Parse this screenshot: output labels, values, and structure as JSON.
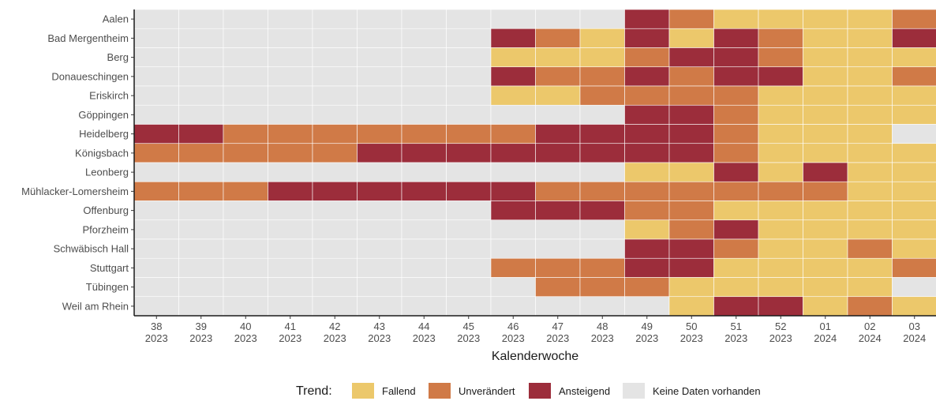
{
  "chart_data": {
    "type": "heatmap",
    "title": "",
    "xlabel": "Kalenderwoche",
    "ylabel": "",
    "weeks": [
      "38",
      "39",
      "40",
      "41",
      "42",
      "43",
      "44",
      "45",
      "46",
      "47",
      "48",
      "49",
      "50",
      "51",
      "52",
      "01",
      "02",
      "03"
    ],
    "years": [
      "2023",
      "2023",
      "2023",
      "2023",
      "2023",
      "2023",
      "2023",
      "2023",
      "2023",
      "2023",
      "2023",
      "2023",
      "2023",
      "2023",
      "2023",
      "2024",
      "2024",
      "2024"
    ],
    "rows": [
      "Aalen",
      "Bad Mergentheim",
      "Berg",
      "Donaueschingen",
      "Eriskirch",
      "Göppingen",
      "Heidelberg",
      "Königsbach",
      "Leonberg",
      "Mühlacker-Lomersheim",
      "Offenburg",
      "Pforzheim",
      "Schwäbisch Hall",
      "Stuttgart",
      "Tübingen",
      "Weil am Rhein"
    ],
    "codes": {
      "F": "Fallend",
      "U": "Unverändert",
      "A": "Ansteigend",
      "N": "Keine Daten vorhanden"
    },
    "values": [
      [
        "N",
        "N",
        "N",
        "N",
        "N",
        "N",
        "N",
        "N",
        "N",
        "N",
        "N",
        "A",
        "U",
        "F",
        "F",
        "F",
        "F",
        "U"
      ],
      [
        "N",
        "N",
        "N",
        "N",
        "N",
        "N",
        "N",
        "N",
        "A",
        "U",
        "F",
        "A",
        "F",
        "A",
        "U",
        "F",
        "F",
        "A"
      ],
      [
        "N",
        "N",
        "N",
        "N",
        "N",
        "N",
        "N",
        "N",
        "F",
        "F",
        "F",
        "U",
        "A",
        "A",
        "U",
        "F",
        "F",
        "F"
      ],
      [
        "N",
        "N",
        "N",
        "N",
        "N",
        "N",
        "N",
        "N",
        "A",
        "U",
        "U",
        "A",
        "U",
        "A",
        "A",
        "F",
        "F",
        "U"
      ],
      [
        "N",
        "N",
        "N",
        "N",
        "N",
        "N",
        "N",
        "N",
        "F",
        "F",
        "U",
        "U",
        "U",
        "U",
        "F",
        "F",
        "F",
        "F"
      ],
      [
        "N",
        "N",
        "N",
        "N",
        "N",
        "N",
        "N",
        "N",
        "N",
        "N",
        "N",
        "A",
        "A",
        "U",
        "F",
        "F",
        "F",
        "F"
      ],
      [
        "A",
        "A",
        "U",
        "U",
        "U",
        "U",
        "U",
        "U",
        "U",
        "A",
        "A",
        "A",
        "A",
        "U",
        "F",
        "F",
        "F",
        "N"
      ],
      [
        "U",
        "U",
        "U",
        "U",
        "U",
        "A",
        "A",
        "A",
        "A",
        "A",
        "A",
        "A",
        "A",
        "U",
        "F",
        "F",
        "F",
        "F"
      ],
      [
        "N",
        "N",
        "N",
        "N",
        "N",
        "N",
        "N",
        "N",
        "N",
        "N",
        "N",
        "F",
        "F",
        "A",
        "F",
        "A",
        "F",
        "F"
      ],
      [
        "U",
        "U",
        "U",
        "A",
        "A",
        "A",
        "A",
        "A",
        "A",
        "U",
        "U",
        "U",
        "U",
        "U",
        "U",
        "U",
        "F",
        "F"
      ],
      [
        "N",
        "N",
        "N",
        "N",
        "N",
        "N",
        "N",
        "N",
        "A",
        "A",
        "A",
        "U",
        "U",
        "F",
        "F",
        "F",
        "F",
        "F"
      ],
      [
        "N",
        "N",
        "N",
        "N",
        "N",
        "N",
        "N",
        "N",
        "N",
        "N",
        "N",
        "F",
        "U",
        "A",
        "F",
        "F",
        "F",
        "F"
      ],
      [
        "N",
        "N",
        "N",
        "N",
        "N",
        "N",
        "N",
        "N",
        "N",
        "N",
        "N",
        "A",
        "A",
        "U",
        "F",
        "F",
        "U",
        "F"
      ],
      [
        "N",
        "N",
        "N",
        "N",
        "N",
        "N",
        "N",
        "N",
        "U",
        "U",
        "U",
        "A",
        "A",
        "F",
        "F",
        "F",
        "F",
        "U"
      ],
      [
        "N",
        "N",
        "N",
        "N",
        "N",
        "N",
        "N",
        "N",
        "N",
        "U",
        "U",
        "U",
        "F",
        "F",
        "F",
        "F",
        "F",
        "N"
      ],
      [
        "N",
        "N",
        "N",
        "N",
        "N",
        "N",
        "N",
        "N",
        "N",
        "N",
        "N",
        "N",
        "F",
        "A",
        "A",
        "F",
        "U",
        "F"
      ]
    ],
    "colors": {
      "F": "#ecc86b",
      "U": "#d07a47",
      "A": "#9c2d3b",
      "N": "#e4e4e4"
    },
    "legend": {
      "title": "Trend:",
      "position": "bottom",
      "items": [
        {
          "code": "F",
          "label": "Fallend"
        },
        {
          "code": "U",
          "label": "Unverändert"
        },
        {
          "code": "A",
          "label": "Ansteigend"
        },
        {
          "code": "N",
          "label": "Keine Daten vorhanden"
        }
      ]
    }
  }
}
